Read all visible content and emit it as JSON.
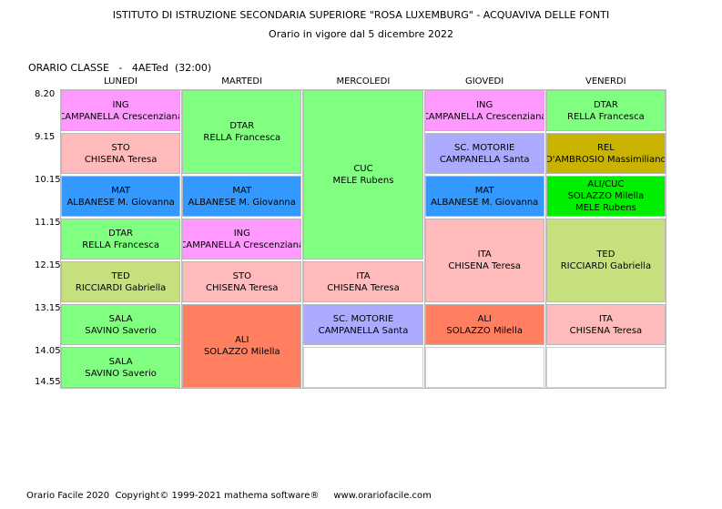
{
  "header": {
    "title": "ISTITUTO DI ISTRUZIONE SECONDARIA SUPERIORE \"ROSA LUXEMBURG\" - ACQUAVIVA DELLE FONTI",
    "subtitle": "Orario in vigore dal 5 dicembre 2022",
    "class_label": "ORARIO CLASSE   -   4AETed  (32:00)"
  },
  "days": [
    "LUNEDI",
    "MARTEDI",
    "MERCOLEDI",
    "GIOVEDI",
    "VENERDI"
  ],
  "times": [
    "8.20",
    "9.15",
    "10.15",
    "11.15",
    "12.15",
    "13.15",
    "14.05",
    "14.55"
  ],
  "lessons": [
    {
      "day": 0,
      "start": 0,
      "span": 1,
      "subject": "ING",
      "teacher": "CAMPANELLA Crescenziana",
      "color": "#ff99ff"
    },
    {
      "day": 0,
      "start": 1,
      "span": 1,
      "subject": "STO",
      "teacher": "CHISENA Teresa",
      "color": "#ffbbbb"
    },
    {
      "day": 0,
      "start": 2,
      "span": 1,
      "subject": "MAT",
      "teacher": "ALBANESE M. Giovanna",
      "color": "#3399ff"
    },
    {
      "day": 0,
      "start": 3,
      "span": 1,
      "subject": "DTAR",
      "teacher": "RELLA Francesca",
      "color": "#80ff80"
    },
    {
      "day": 0,
      "start": 4,
      "span": 1,
      "subject": "TED",
      "teacher": "RICCIARDI Gabriella",
      "color": "#c6e07e"
    },
    {
      "day": 0,
      "start": 5,
      "span": 1,
      "subject": "SALA",
      "teacher": "SAVINO Saverio",
      "color": "#80ff80"
    },
    {
      "day": 0,
      "start": 6,
      "span": 1,
      "subject": "SALA",
      "teacher": "SAVINO Saverio",
      "color": "#80ff80"
    },
    {
      "day": 1,
      "start": 0,
      "span": 2,
      "subject": "DTAR",
      "teacher": "RELLA Francesca",
      "color": "#80ff80"
    },
    {
      "day": 1,
      "start": 2,
      "span": 1,
      "subject": "MAT",
      "teacher": "ALBANESE M. Giovanna",
      "color": "#3399ff"
    },
    {
      "day": 1,
      "start": 3,
      "span": 1,
      "subject": "ING",
      "teacher": "CAMPANELLA Crescenziana",
      "color": "#ff99ff"
    },
    {
      "day": 1,
      "start": 4,
      "span": 1,
      "subject": "STO",
      "teacher": "CHISENA Teresa",
      "color": "#ffbbbb"
    },
    {
      "day": 1,
      "start": 5,
      "span": 2,
      "subject": "ALI",
      "teacher": "SOLAZZO Milella",
      "color": "#ff7f60"
    },
    {
      "day": 2,
      "start": 0,
      "span": 4,
      "subject": "CUC",
      "teacher": "MELE Rubens",
      "color": "#80ff80"
    },
    {
      "day": 2,
      "start": 4,
      "span": 1,
      "subject": "ITA",
      "teacher": "CHISENA Teresa",
      "color": "#ffbbbb"
    },
    {
      "day": 2,
      "start": 5,
      "span": 1,
      "subject": "SC. MOTORIE",
      "teacher": "CAMPANELLA Santa",
      "color": "#aaaaff"
    },
    {
      "day": 3,
      "start": 0,
      "span": 1,
      "subject": "ING",
      "teacher": "CAMPANELLA Crescenziana",
      "color": "#ff99ff"
    },
    {
      "day": 3,
      "start": 1,
      "span": 1,
      "subject": "SC. MOTORIE",
      "teacher": "CAMPANELLA Santa",
      "color": "#aaaaff"
    },
    {
      "day": 3,
      "start": 2,
      "span": 1,
      "subject": "MAT",
      "teacher": "ALBANESE M. Giovanna",
      "color": "#3399ff"
    },
    {
      "day": 3,
      "start": 3,
      "span": 2,
      "subject": "ITA",
      "teacher": "CHISENA Teresa",
      "color": "#ffbbbb"
    },
    {
      "day": 3,
      "start": 5,
      "span": 1,
      "subject": "ALI",
      "teacher": "SOLAZZO Milella",
      "color": "#ff7f60"
    },
    {
      "day": 4,
      "start": 0,
      "span": 1,
      "subject": "DTAR",
      "teacher": "RELLA Francesca",
      "color": "#80ff80"
    },
    {
      "day": 4,
      "start": 1,
      "span": 1,
      "subject": "REL",
      "teacher": "D'AMBROSIO Massimiliano",
      "color": "#c8b400"
    },
    {
      "day": 4,
      "start": 2,
      "span": 1,
      "subject": "ALI/CUC",
      "teacher": "SOLAZZO Milella",
      "teacher2": "MELE Rubens",
      "color": "#00ee00"
    },
    {
      "day": 4,
      "start": 3,
      "span": 2,
      "subject": "TED",
      "teacher": "RICCIARDI Gabriella",
      "color": "#c6e07e"
    },
    {
      "day": 4,
      "start": 5,
      "span": 1,
      "subject": "ITA",
      "teacher": "CHISENA Teresa",
      "color": "#ffbbbb"
    }
  ],
  "empty_slots": [
    {
      "day": 2,
      "start": 6,
      "span": 1
    },
    {
      "day": 3,
      "start": 6,
      "span": 1
    },
    {
      "day": 4,
      "start": 6,
      "span": 1
    }
  ],
  "footer": "Orario Facile 2020  Copyright© 1999-2021 mathema software®     www.orariofacile.com"
}
